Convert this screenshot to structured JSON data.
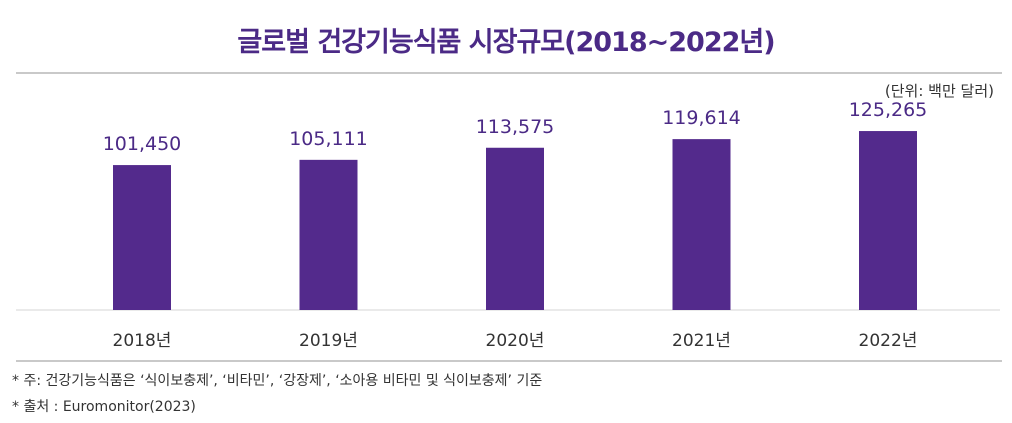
{
  "title": "글로벌 건강기능식품 시장규모(2018~2022년)",
  "unit_note": "(단위: 백만 달러)",
  "footnotes": [
    "* 주: 건강기능식품은 ‘식이보충제’, ‘비타민’, ‘강장제’, ‘소아용 비타민 및 식이보충제’ 기준",
    "* 출처 : Euromonitor(2023)"
  ],
  "colors": {
    "bar": "#532a8c",
    "value_label": "#4b2a86",
    "axis_line": "#d6d6d6"
  },
  "chart_data": {
    "type": "bar",
    "categories": [
      "2018년",
      "2019년",
      "2020년",
      "2021년",
      "2022년"
    ],
    "values": [
      101450,
      105111,
      113575,
      119614,
      125265
    ],
    "value_labels": [
      "101,450",
      "105,111",
      "113,575",
      "119,614",
      "125,265"
    ],
    "title": "글로벌 건강기능식품 시장규모(2018~2022년)",
    "xlabel": "",
    "ylabel": "",
    "ylim": [
      0,
      140000
    ],
    "grid": false,
    "legend": "none"
  }
}
